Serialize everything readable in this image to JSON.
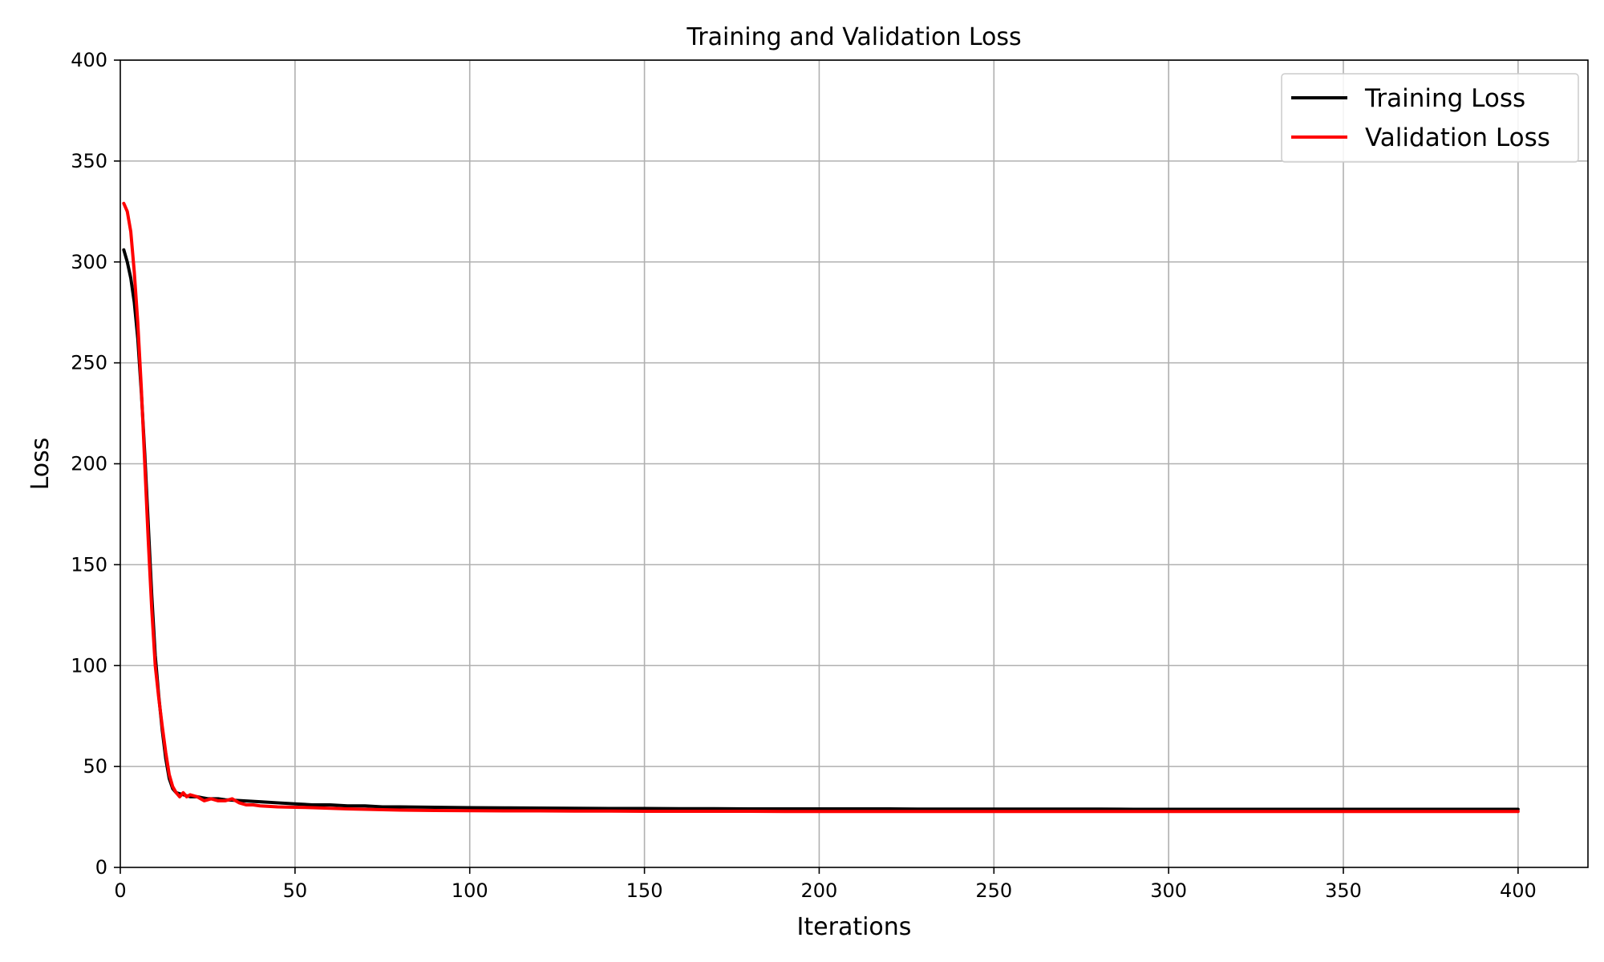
{
  "chart_data": {
    "type": "line",
    "title": "Training and Validation Loss",
    "xlabel": "Iterations",
    "ylabel": "Loss",
    "xlim": [
      0,
      420
    ],
    "ylim": [
      0,
      400
    ],
    "xticks": [
      0,
      50,
      100,
      150,
      200,
      250,
      300,
      350,
      400
    ],
    "yticks": [
      0,
      50,
      100,
      150,
      200,
      250,
      300,
      350,
      400
    ],
    "grid": true,
    "legend_position": "top-right",
    "series": [
      {
        "name": "Training Loss",
        "color": "#000000",
        "points": [
          [
            1,
            306
          ],
          [
            2,
            300
          ],
          [
            3,
            292
          ],
          [
            4,
            280
          ],
          [
            5,
            262
          ],
          [
            6,
            236
          ],
          [
            7,
            205
          ],
          [
            8,
            170
          ],
          [
            9,
            135
          ],
          [
            10,
            105
          ],
          [
            11,
            85
          ],
          [
            12,
            68
          ],
          [
            13,
            54
          ],
          [
            14,
            44
          ],
          [
            15,
            39
          ],
          [
            16,
            37
          ],
          [
            18,
            36
          ],
          [
            20,
            35
          ],
          [
            22,
            35
          ],
          [
            25,
            34
          ],
          [
            28,
            34
          ],
          [
            30,
            33.5
          ],
          [
            35,
            33
          ],
          [
            40,
            32.5
          ],
          [
            45,
            32
          ],
          [
            50,
            31.5
          ],
          [
            55,
            31
          ],
          [
            60,
            31
          ],
          [
            65,
            30.5
          ],
          [
            70,
            30.5
          ],
          [
            75,
            30
          ],
          [
            80,
            30
          ],
          [
            90,
            29.8
          ],
          [
            100,
            29.6
          ],
          [
            110,
            29.5
          ],
          [
            120,
            29.4
          ],
          [
            130,
            29.3
          ],
          [
            140,
            29.2
          ],
          [
            150,
            29.2
          ],
          [
            160,
            29.1
          ],
          [
            170,
            29.1
          ],
          [
            180,
            29
          ],
          [
            190,
            29
          ],
          [
            200,
            29
          ],
          [
            210,
            29
          ],
          [
            220,
            29
          ],
          [
            230,
            28.9
          ],
          [
            240,
            28.9
          ],
          [
            250,
            28.9
          ],
          [
            260,
            28.9
          ],
          [
            270,
            28.9
          ],
          [
            280,
            28.9
          ],
          [
            290,
            28.8
          ],
          [
            300,
            28.8
          ],
          [
            310,
            28.8
          ],
          [
            320,
            28.8
          ],
          [
            330,
            28.8
          ],
          [
            340,
            28.8
          ],
          [
            350,
            28.8
          ],
          [
            360,
            28.8
          ],
          [
            370,
            28.8
          ],
          [
            380,
            28.8
          ],
          [
            390,
            28.8
          ],
          [
            400,
            28.8
          ]
        ]
      },
      {
        "name": "Validation Loss",
        "color": "#ff0000",
        "points": [
          [
            1,
            329
          ],
          [
            2,
            325
          ],
          [
            3,
            315
          ],
          [
            4,
            295
          ],
          [
            5,
            270
          ],
          [
            6,
            238
          ],
          [
            7,
            200
          ],
          [
            8,
            162
          ],
          [
            9,
            128
          ],
          [
            10,
            100
          ],
          [
            11,
            84
          ],
          [
            12,
            70
          ],
          [
            13,
            57
          ],
          [
            14,
            46
          ],
          [
            15,
            40
          ],
          [
            16,
            37
          ],
          [
            17,
            35
          ],
          [
            18,
            37
          ],
          [
            19,
            35
          ],
          [
            20,
            36
          ],
          [
            22,
            35
          ],
          [
            24,
            33
          ],
          [
            26,
            34
          ],
          [
            28,
            33
          ],
          [
            30,
            33
          ],
          [
            32,
            34
          ],
          [
            34,
            32
          ],
          [
            36,
            31
          ],
          [
            38,
            31
          ],
          [
            40,
            30.5
          ],
          [
            45,
            30
          ],
          [
            50,
            29.8
          ],
          [
            55,
            29.6
          ],
          [
            60,
            29.3
          ],
          [
            65,
            29
          ],
          [
            70,
            28.8
          ],
          [
            75,
            28.6
          ],
          [
            80,
            28.4
          ],
          [
            90,
            28.2
          ],
          [
            100,
            28.1
          ],
          [
            110,
            28
          ],
          [
            120,
            28
          ],
          [
            130,
            27.9
          ],
          [
            140,
            27.9
          ],
          [
            150,
            27.8
          ],
          [
            160,
            27.8
          ],
          [
            170,
            27.8
          ],
          [
            180,
            27.8
          ],
          [
            190,
            27.7
          ],
          [
            200,
            27.7
          ],
          [
            210,
            27.7
          ],
          [
            220,
            27.7
          ],
          [
            230,
            27.7
          ],
          [
            240,
            27.7
          ],
          [
            250,
            27.7
          ],
          [
            260,
            27.7
          ],
          [
            270,
            27.7
          ],
          [
            280,
            27.7
          ],
          [
            290,
            27.7
          ],
          [
            300,
            27.7
          ],
          [
            310,
            27.7
          ],
          [
            320,
            27.7
          ],
          [
            330,
            27.7
          ],
          [
            340,
            27.7
          ],
          [
            350,
            27.7
          ],
          [
            360,
            27.7
          ],
          [
            370,
            27.7
          ],
          [
            380,
            27.7
          ],
          [
            390,
            27.7
          ],
          [
            400,
            27.7
          ]
        ]
      }
    ]
  }
}
